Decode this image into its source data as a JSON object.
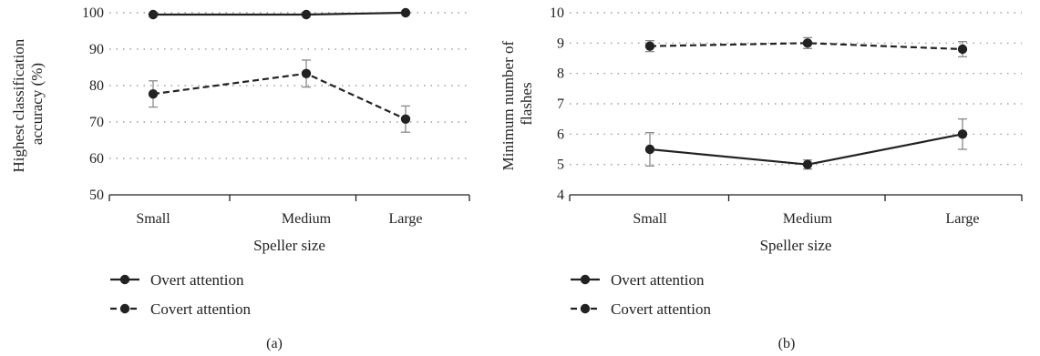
{
  "chart_data": [
    {
      "type": "line",
      "caption": "(a)",
      "xlabel": "Speller size",
      "ylabel": "Highest classification accuracy (%)",
      "ylabel_lines": [
        "Highest classification",
        "accuracy (%)"
      ],
      "categories": [
        "Small",
        "Medium",
        "Large"
      ],
      "ylim": [
        50,
        100
      ],
      "yticks": [
        50,
        60,
        70,
        80,
        90,
        100
      ],
      "grid": true,
      "legend_position": "bottom-left",
      "series": [
        {
          "name": "Overt attention",
          "line_style": "solid",
          "values": [
            99.5,
            99.5,
            100
          ],
          "errors": [
            0,
            0,
            0
          ]
        },
        {
          "name": "Covert attention",
          "line_style": "dashed",
          "values": [
            77.7,
            83.3,
            70.8
          ],
          "errors": [
            3.6,
            3.7,
            3.6
          ]
        }
      ]
    },
    {
      "type": "line",
      "caption": "(b)",
      "xlabel": "Speller size",
      "ylabel": "Minimum number of flashes",
      "ylabel_lines": [
        "Minimum number of",
        "flashes"
      ],
      "categories": [
        "Small",
        "Medium",
        "Large"
      ],
      "ylim": [
        4,
        10
      ],
      "yticks": [
        4,
        5,
        6,
        7,
        8,
        9,
        10
      ],
      "grid": true,
      "legend_position": "bottom-left",
      "series": [
        {
          "name": "Overt attention",
          "line_style": "solid",
          "values": [
            5.5,
            5.0,
            6.0
          ],
          "errors": [
            0.55,
            0.15,
            0.5
          ]
        },
        {
          "name": "Covert attention",
          "line_style": "dashed",
          "values": [
            8.9,
            9.0,
            8.8
          ],
          "errors": [
            0.18,
            0.18,
            0.25
          ]
        }
      ]
    }
  ],
  "colors": {
    "line": "#222222",
    "grid": "#8a8a8a",
    "error_bar": "#8a8a8a"
  }
}
